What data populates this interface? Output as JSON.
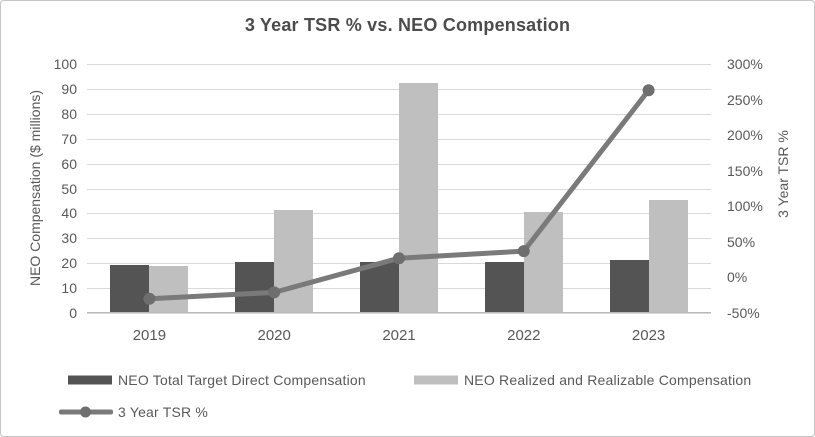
{
  "chart_data": {
    "type": "bar",
    "subtype": "clustered-bars-with-line-on-secondary-axis",
    "title": "3 Year TSR % vs. NEO Compensation",
    "categories": [
      "2019",
      "2020",
      "2021",
      "2022",
      "2023"
    ],
    "series": [
      {
        "name": "NEO Total Target Direct Compensation",
        "type": "bar",
        "axis": "left",
        "color": "#545454",
        "values": [
          19,
          20,
          20,
          20,
          21
        ]
      },
      {
        "name": "NEO Realized and Realizable Compensation",
        "type": "bar",
        "axis": "left",
        "color": "#bfbfbf",
        "values": [
          18.5,
          41,
          92,
          40,
          45
        ]
      },
      {
        "name": "3 Year TSR %",
        "type": "line",
        "axis": "right",
        "color": "#7a7a7a",
        "marker_color": "#6e6e6e",
        "unit": "%",
        "values": [
          -30,
          -21,
          27,
          37,
          263
        ]
      }
    ],
    "xlabel": "",
    "ylabel_left": "NEO Compensation ($ millions)",
    "ylabel_right": "3 Year TSR %",
    "left_axis": {
      "min": 0,
      "max": 100,
      "step": 10,
      "tick_labels_top_down": [
        "100",
        "90",
        "80",
        "70",
        "60",
        "50",
        "40",
        "30",
        "20",
        "10",
        "0"
      ]
    },
    "right_axis": {
      "min": -50,
      "max": 300,
      "step": 50,
      "tick_labels_top_down": [
        "300%",
        "250%",
        "200%",
        "150%",
        "100%",
        "50%",
        "0%",
        "-50%"
      ]
    },
    "grid": true,
    "legend_position": "bottom-left",
    "style": {
      "gridline": "#d9d9d9",
      "axis_line": "#b9b9b9",
      "tick_text": "#595959",
      "title_text": "#4c4c4c",
      "background": "#ffffff",
      "border": "#c6c6c6"
    }
  }
}
